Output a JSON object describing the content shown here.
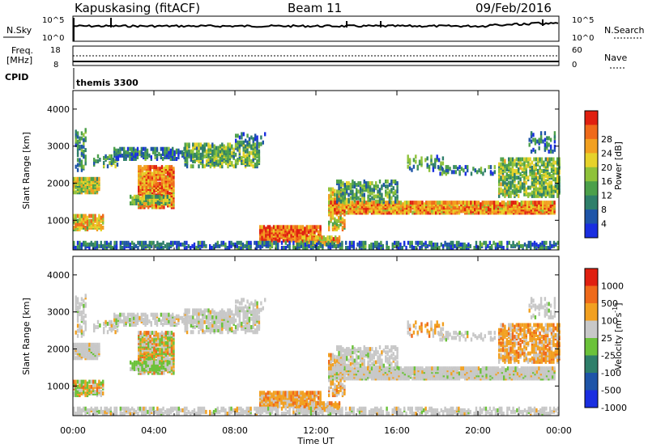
{
  "header": {
    "station": "Kapuskasing (fitACF)",
    "beam": "Beam 11",
    "date": "09/Feb/2016"
  },
  "panels": {
    "nsky_label": "N.Sky",
    "nsearch_label": "N.Search",
    "nsky_ticks": [
      "10^5",
      "10^0"
    ],
    "freq_label_1": "Freq.",
    "freq_label_2": "[MHz]",
    "freq_ticks": [
      "18",
      "8"
    ],
    "nave_label": "Nave",
    "nave_ticks": [
      "60",
      "0"
    ],
    "cpid_label": "CPID",
    "cpid_value": "themis 3300"
  },
  "chart_data": [
    {
      "type": "heatmap",
      "title": "",
      "xlabel": "Time UT",
      "ylabel": "Slant Range [km]",
      "x_ticks": [
        "00:00",
        "04:00",
        "08:00",
        "12:00",
        "16:00",
        "20:00",
        "00:00"
      ],
      "y_ticks": [
        1000,
        2000,
        3000,
        4000
      ],
      "ylim": [
        200,
        4500
      ],
      "colorbar": {
        "label": "Power [dB]",
        "ticks": [
          4,
          8,
          12,
          16,
          20,
          24,
          28
        ],
        "colors": [
          "#1a2ee0",
          "#1f55a8",
          "#2f7f6a",
          "#4ca04a",
          "#8fc23a",
          "#e6d22a",
          "#f2a020",
          "#ef6a1a",
          "#e02010"
        ]
      }
    },
    {
      "type": "heatmap",
      "title": "",
      "xlabel": "Time UT",
      "ylabel": "Slant Range [km]",
      "x_ticks": [
        "00:00",
        "04:00",
        "08:00",
        "12:00",
        "16:00",
        "20:00",
        "00:00"
      ],
      "y_ticks": [
        1000,
        2000,
        3000,
        4000
      ],
      "ylim": [
        200,
        4500
      ],
      "colorbar": {
        "label": "Velocity [m s^-1]",
        "ticks": [
          1000,
          500,
          100,
          25,
          -25,
          -100,
          -500,
          -1000
        ],
        "colors": [
          "#1a2ee0",
          "#1f55a8",
          "#2f7f6a",
          "#6bc23a",
          "#c8c8c8",
          "#f2a020",
          "#ef6a1a",
          "#e02010"
        ]
      }
    }
  ]
}
